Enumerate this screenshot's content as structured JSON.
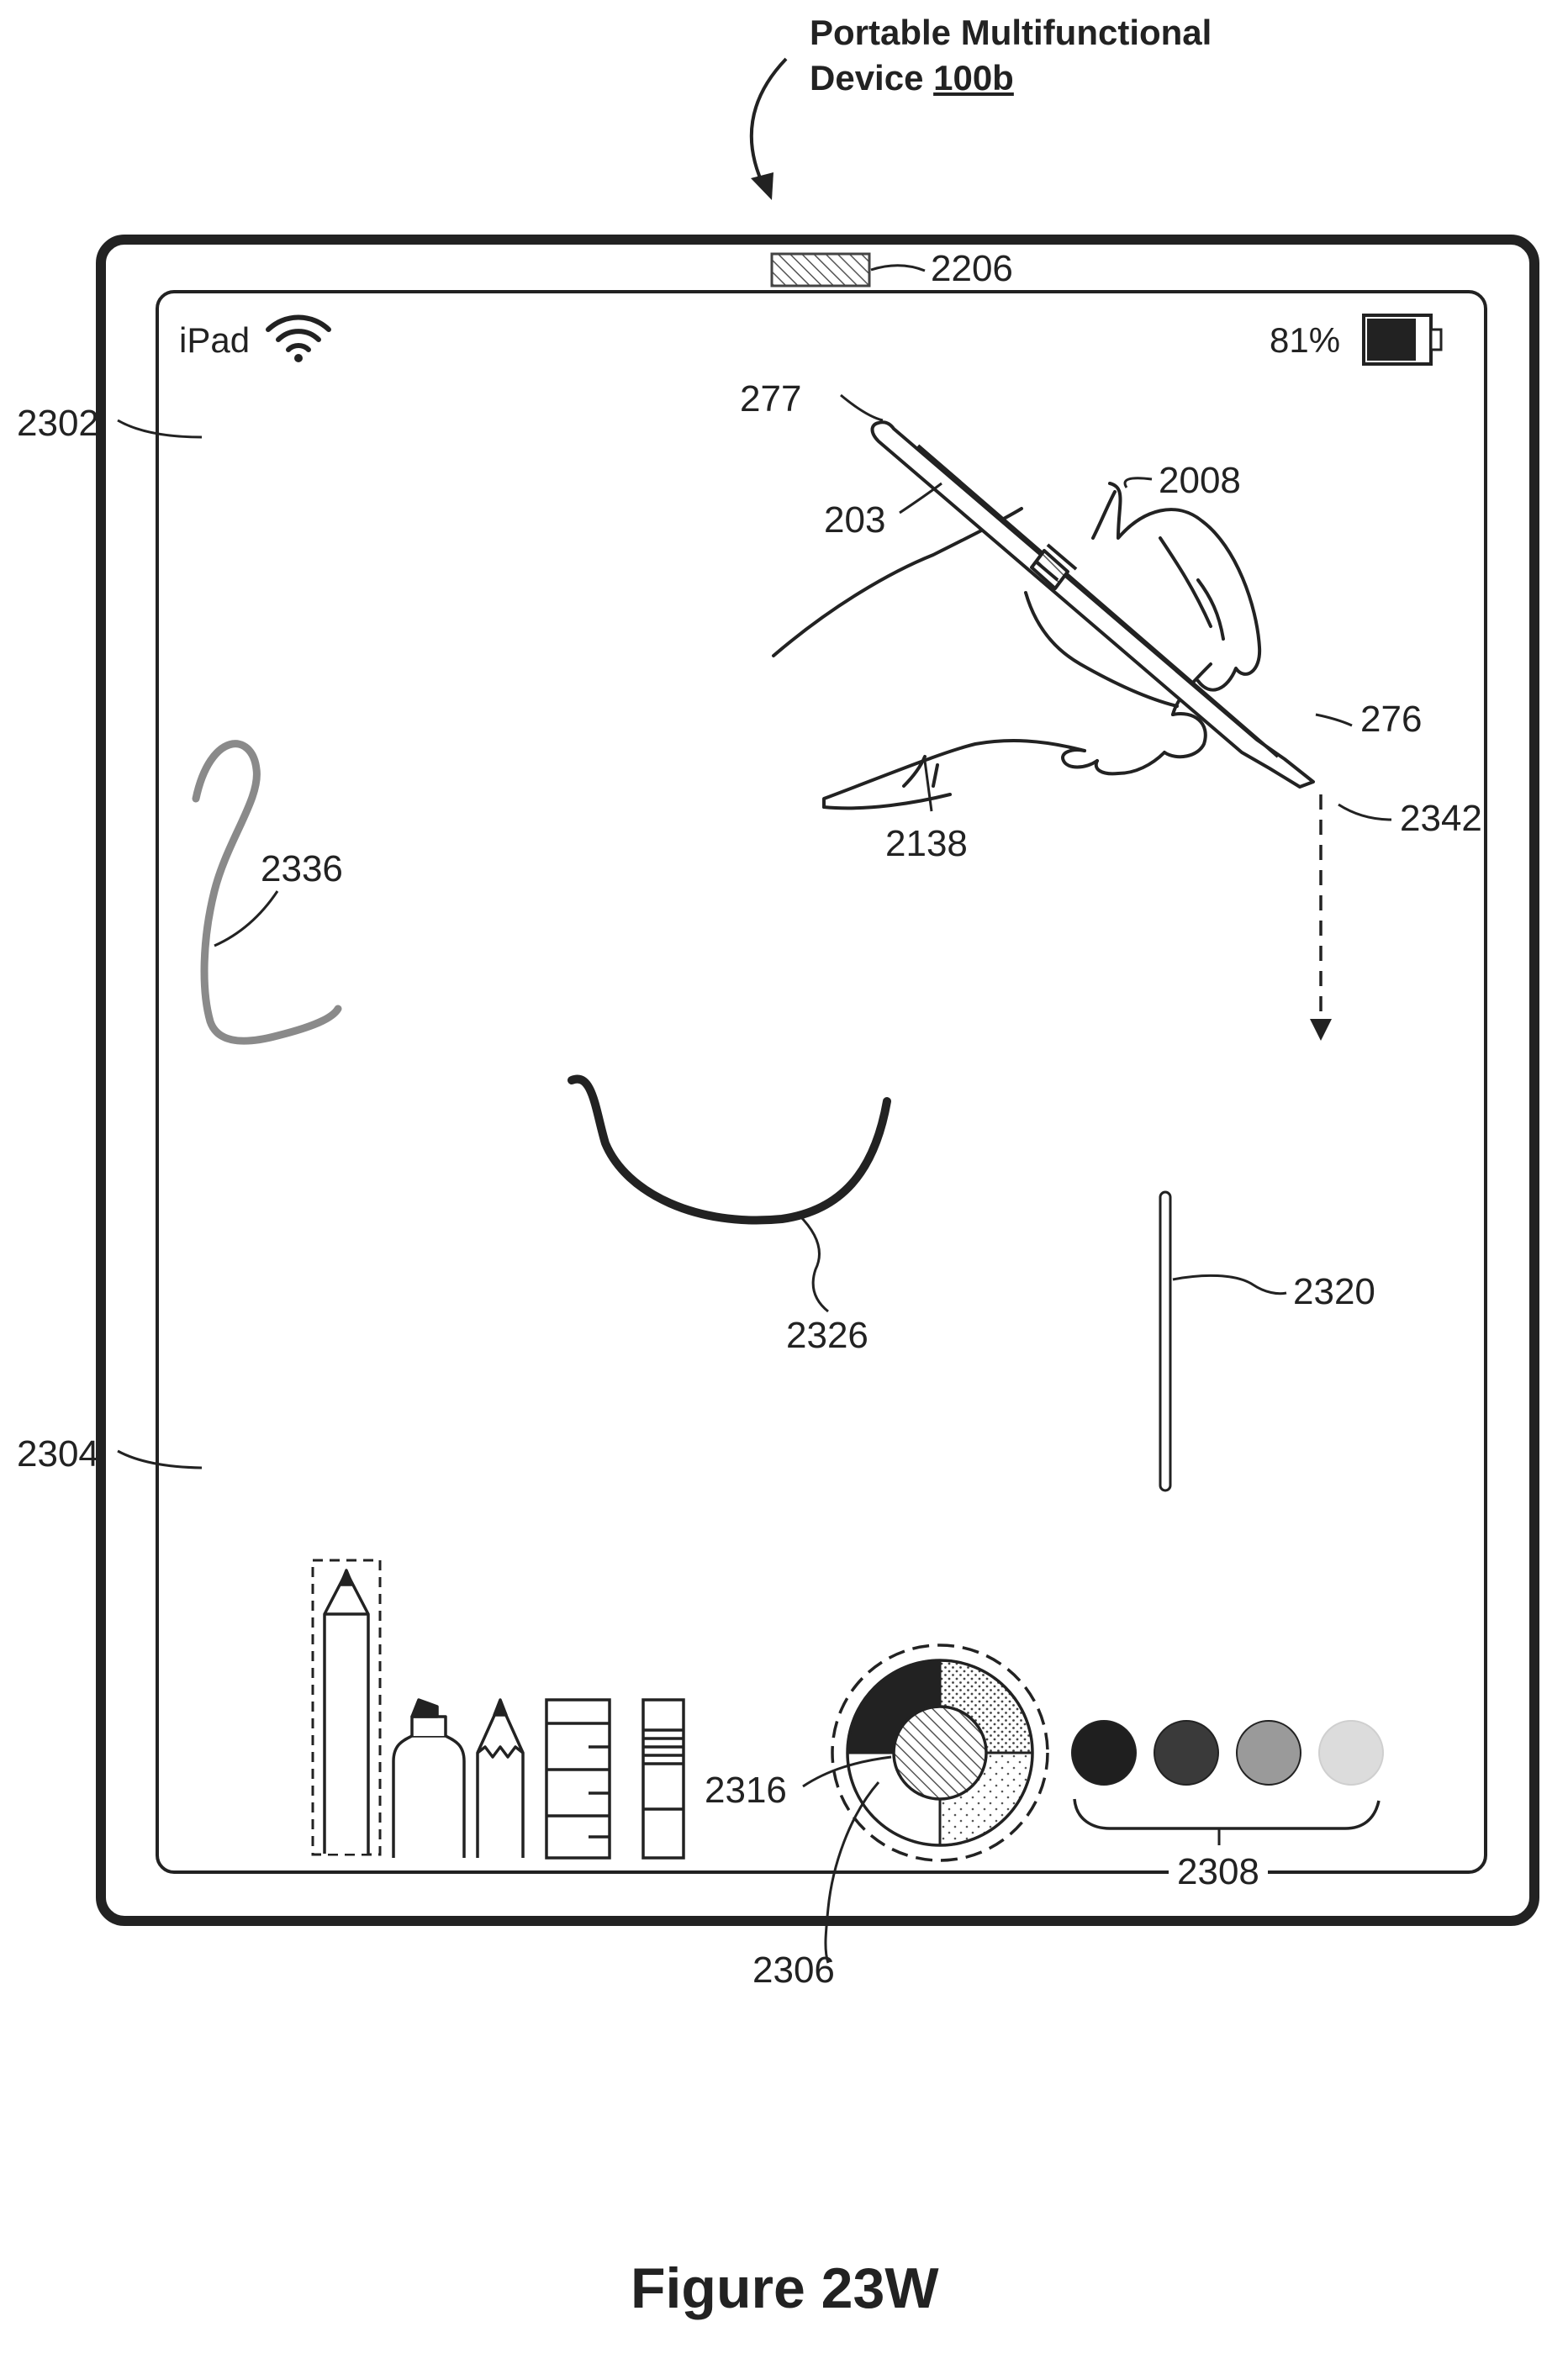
{
  "header": {
    "title_line1": "Portable Multifunctional",
    "title_line2_prefix": "Device ",
    "device_ref": "100b"
  },
  "figure_label": "Figure 23W",
  "status_bar": {
    "device_name": "iPad",
    "battery_percent": "81%",
    "battery_level": 0.81
  },
  "tool_palette": {
    "tools": [
      "pen",
      "marker",
      "pencil",
      "ruler",
      "eraser"
    ],
    "selected_tool": "pen",
    "color_swatches": [
      "#1f1f1f",
      "#3a3a3a",
      "#9a9a9a",
      "#dcdcdc"
    ]
  },
  "refs": {
    "sensor": "2206",
    "top_region": "2302",
    "bottom_region": "2304",
    "stylus_end": "277",
    "stylus_body": "203",
    "stylus_grip": "2008",
    "stylus_tip": "276",
    "tip_projection": "2342",
    "hand": "2138",
    "stroke_left": "2336",
    "stroke_center": "2326",
    "stroke_right": "2320",
    "color_wheel_center": "2316",
    "color_wheel": "2306",
    "swatches_group": "2308"
  }
}
